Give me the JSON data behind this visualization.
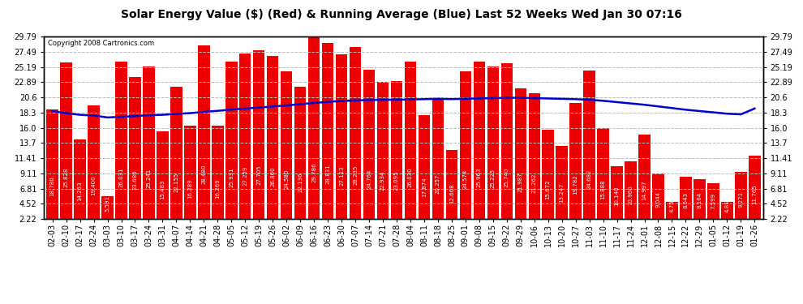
{
  "title": "Solar Energy Value ($) (Red) & Running Average (Blue) Last 52 Weeks Wed Jan 30 07:16",
  "copyright": "Copyright 2008 Cartronics.com",
  "bar_color": "#ee0000",
  "line_color": "#0000cc",
  "bg_color": "#ffffff",
  "grid_color": "#bbbbbb",
  "yticks": [
    2.22,
    4.52,
    6.81,
    9.11,
    11.41,
    13.7,
    16.0,
    18.3,
    20.6,
    22.89,
    25.19,
    27.49,
    29.79
  ],
  "ymin": 2.22,
  "ymax": 29.79,
  "categories": [
    "02-03",
    "02-10",
    "02-17",
    "02-24",
    "03-03",
    "03-10",
    "03-17",
    "03-24",
    "03-31",
    "04-07",
    "04-14",
    "04-21",
    "04-28",
    "05-05",
    "05-12",
    "05-19",
    "05-26",
    "06-02",
    "06-09",
    "06-16",
    "06-23",
    "06-30",
    "07-07",
    "07-14",
    "07-21",
    "07-28",
    "08-04",
    "08-11",
    "08-18",
    "08-25",
    "09-01",
    "09-08",
    "09-15",
    "09-22",
    "09-29",
    "10-06",
    "10-13",
    "10-20",
    "10-27",
    "11-03",
    "11-10",
    "11-17",
    "11-24",
    "12-01",
    "12-08",
    "12-15",
    "12-22",
    "12-29",
    "01-05",
    "01-12",
    "01-19",
    "01-26"
  ],
  "values": [
    18.78,
    25.828,
    14.263,
    19.4,
    5.591,
    26.031,
    23.686,
    25.241,
    15.483,
    22.155,
    16.289,
    28.48,
    16.269,
    25.931,
    27.259,
    27.705,
    26.86,
    24.58,
    22.136,
    29.786,
    28.831,
    27.113,
    28.235,
    24.764,
    22.934,
    23.095,
    26.03,
    17.874,
    20.257,
    12.668,
    24.574,
    25.963,
    25.225,
    25.74,
    21.987,
    21.262,
    15.672,
    13.247,
    19.782,
    24.682,
    15.888,
    10.14,
    10.96,
    14.997,
    9.044,
    4.754,
    8.543,
    8.164,
    7.599,
    4.815,
    9.271,
    11.765
  ],
  "running_avg": [
    18.5,
    18.2,
    17.95,
    17.85,
    17.55,
    17.65,
    17.75,
    17.9,
    17.95,
    18.1,
    18.2,
    18.4,
    18.55,
    18.75,
    18.9,
    19.05,
    19.2,
    19.38,
    19.55,
    19.75,
    19.9,
    20.05,
    20.12,
    20.18,
    20.22,
    20.22,
    20.27,
    20.32,
    20.37,
    20.32,
    20.38,
    20.43,
    20.47,
    20.52,
    20.52,
    20.47,
    20.42,
    20.37,
    20.32,
    20.22,
    20.07,
    19.87,
    19.67,
    19.47,
    19.22,
    18.97,
    18.72,
    18.52,
    18.32,
    18.12,
    18.02,
    18.9
  ],
  "title_fontsize": 10,
  "tick_fontsize": 7,
  "label_fontsize": 5,
  "copyright_fontsize": 6
}
